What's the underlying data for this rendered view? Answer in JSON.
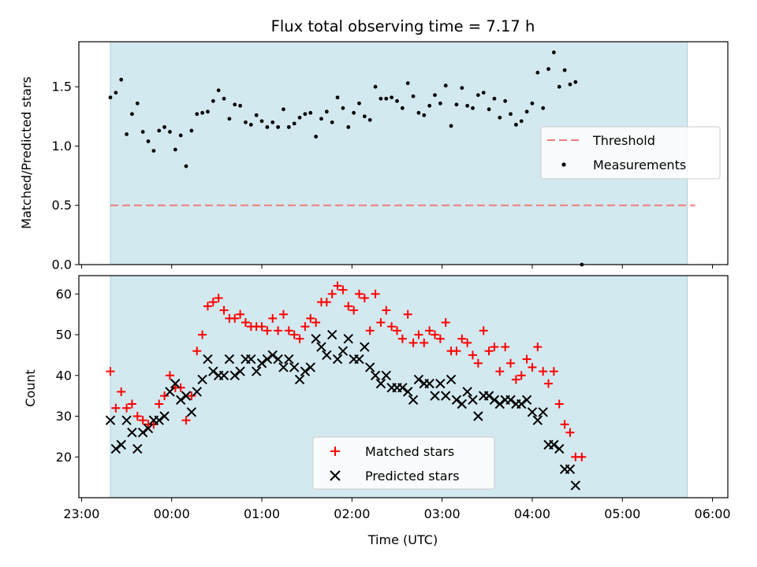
{
  "chart_data": [
    {
      "type": "scatter",
      "title": "Flux total observing time = 7.17 h",
      "xlabel": "",
      "ylabel": "Matched/Predicted stars",
      "x_unit": "hours since 00:00 UTC",
      "xlim": [
        -1.03,
        6.17
      ],
      "ylim": [
        0.0,
        1.88
      ],
      "yticks": [
        0.0,
        0.5,
        1.0,
        1.5
      ],
      "xticks": [
        "23:00",
        "00:00",
        "01:00",
        "02:00",
        "03:00",
        "04:00",
        "05:00",
        "06:00"
      ],
      "observing_window": [
        -0.68,
        5.72
      ],
      "observing_window_color": "#d3e9f0",
      "threshold": 0.5,
      "threshold_color": "#f07b7b",
      "legend": {
        "placement": "right",
        "threshold_label": "Threshold",
        "measurements_label": "Measurements"
      },
      "series": [
        {
          "name": "Measurements",
          "color": "#000000",
          "points": [
            [
              -0.68,
              1.41
            ],
            [
              -0.62,
              1.45
            ],
            [
              -0.56,
              1.56
            ],
            [
              -0.5,
              1.1
            ],
            [
              -0.44,
              1.27
            ],
            [
              -0.38,
              1.36
            ],
            [
              -0.32,
              1.12
            ],
            [
              -0.26,
              1.04
            ],
            [
              -0.2,
              0.96
            ],
            [
              -0.14,
              1.13
            ],
            [
              -0.08,
              1.16
            ],
            [
              -0.02,
              1.12
            ],
            [
              0.04,
              0.97
            ],
            [
              0.1,
              1.09
            ],
            [
              0.16,
              0.83
            ],
            [
              0.22,
              1.13
            ],
            [
              0.28,
              1.27
            ],
            [
              0.34,
              1.28
            ],
            [
              0.4,
              1.29
            ],
            [
              0.46,
              1.38
            ],
            [
              0.52,
              1.47
            ],
            [
              0.58,
              1.4
            ],
            [
              0.64,
              1.23
            ],
            [
              0.7,
              1.35
            ],
            [
              0.76,
              1.34
            ],
            [
              0.82,
              1.2
            ],
            [
              0.88,
              1.18
            ],
            [
              0.94,
              1.26
            ],
            [
              1.0,
              1.21
            ],
            [
              1.06,
              1.16
            ],
            [
              1.12,
              1.2
            ],
            [
              1.18,
              1.16
            ],
            [
              1.24,
              1.31
            ],
            [
              1.3,
              1.16
            ],
            [
              1.36,
              1.19
            ],
            [
              1.42,
              1.24
            ],
            [
              1.48,
              1.27
            ],
            [
              1.54,
              1.28
            ],
            [
              1.6,
              1.08
            ],
            [
              1.66,
              1.23
            ],
            [
              1.72,
              1.29
            ],
            [
              1.78,
              1.2
            ],
            [
              1.84,
              1.41
            ],
            [
              1.9,
              1.32
            ],
            [
              1.96,
              1.16
            ],
            [
              2.02,
              1.28
            ],
            [
              2.08,
              1.36
            ],
            [
              2.14,
              1.25
            ],
            [
              2.2,
              1.22
            ],
            [
              2.26,
              1.5
            ],
            [
              2.32,
              1.4
            ],
            [
              2.38,
              1.4
            ],
            [
              2.44,
              1.41
            ],
            [
              2.5,
              1.38
            ],
            [
              2.56,
              1.32
            ],
            [
              2.62,
              1.53
            ],
            [
              2.68,
              1.42
            ],
            [
              2.74,
              1.28
            ],
            [
              2.8,
              1.26
            ],
            [
              2.86,
              1.34
            ],
            [
              2.92,
              1.43
            ],
            [
              2.98,
              1.36
            ],
            [
              3.04,
              1.51
            ],
            [
              3.1,
              1.17
            ],
            [
              3.16,
              1.35
            ],
            [
              3.22,
              1.49
            ],
            [
              3.28,
              1.34
            ],
            [
              3.34,
              1.32
            ],
            [
              3.4,
              1.43
            ],
            [
              3.46,
              1.45
            ],
            [
              3.52,
              1.31
            ],
            [
              3.58,
              1.4
            ],
            [
              3.64,
              1.24
            ],
            [
              3.7,
              1.38
            ],
            [
              3.76,
              1.27
            ],
            [
              3.82,
              1.18
            ],
            [
              3.88,
              1.21
            ],
            [
              3.94,
              1.29
            ],
            [
              4.0,
              1.36
            ],
            [
              4.06,
              1.62
            ],
            [
              4.12,
              1.32
            ],
            [
              4.18,
              1.65
            ],
            [
              4.24,
              1.79
            ],
            [
              4.3,
              1.5
            ],
            [
              4.36,
              1.64
            ],
            [
              4.42,
              1.52
            ],
            [
              4.48,
              1.54
            ],
            [
              4.55,
              0.0
            ]
          ]
        }
      ]
    },
    {
      "type": "scatter",
      "title": "",
      "xlabel": "Time (UTC)",
      "ylabel": "Count",
      "x_unit": "hours since 00:00 UTC",
      "xlim": [
        -1.03,
        6.17
      ],
      "ylim": [
        10.0,
        64.5
      ],
      "yticks": [
        20,
        30,
        40,
        50,
        60
      ],
      "xticks": [
        "23:00",
        "00:00",
        "01:00",
        "02:00",
        "03:00",
        "04:00",
        "05:00",
        "06:00"
      ],
      "observing_window": [
        -0.68,
        5.72
      ],
      "observing_window_color": "#d3e9f0",
      "legend": {
        "placement": "bottom-center"
      },
      "series": [
        {
          "name": "Matched stars",
          "marker": "plus",
          "color": "#ff0000",
          "points": [
            [
              -0.68,
              41
            ],
            [
              -0.62,
              32
            ],
            [
              -0.56,
              36
            ],
            [
              -0.5,
              32
            ],
            [
              -0.44,
              33
            ],
            [
              -0.38,
              30
            ],
            [
              -0.32,
              29
            ],
            [
              -0.26,
              28
            ],
            [
              -0.2,
              28
            ],
            [
              -0.14,
              33
            ],
            [
              -0.08,
              35
            ],
            [
              -0.02,
              40
            ],
            [
              0.04,
              37
            ],
            [
              0.1,
              37
            ],
            [
              0.16,
              29
            ],
            [
              0.22,
              35
            ],
            [
              0.28,
              46
            ],
            [
              0.34,
              50
            ],
            [
              0.4,
              57
            ],
            [
              0.46,
              58
            ],
            [
              0.52,
              59
            ],
            [
              0.58,
              56
            ],
            [
              0.64,
              54
            ],
            [
              0.7,
              54
            ],
            [
              0.76,
              55
            ],
            [
              0.82,
              53
            ],
            [
              0.88,
              52
            ],
            [
              0.94,
              52
            ],
            [
              1.0,
              52
            ],
            [
              1.06,
              51
            ],
            [
              1.12,
              54
            ],
            [
              1.18,
              51
            ],
            [
              1.24,
              55
            ],
            [
              1.3,
              51
            ],
            [
              1.36,
              50
            ],
            [
              1.42,
              49
            ],
            [
              1.48,
              52
            ],
            [
              1.54,
              54
            ],
            [
              1.6,
              53
            ],
            [
              1.66,
              58
            ],
            [
              1.72,
              58
            ],
            [
              1.78,
              60
            ],
            [
              1.84,
              62
            ],
            [
              1.9,
              61
            ],
            [
              1.96,
              57
            ],
            [
              2.02,
              56
            ],
            [
              2.08,
              60
            ],
            [
              2.14,
              59
            ],
            [
              2.2,
              51
            ],
            [
              2.26,
              60
            ],
            [
              2.32,
              53
            ],
            [
              2.38,
              56
            ],
            [
              2.44,
              52
            ],
            [
              2.5,
              51
            ],
            [
              2.56,
              49
            ],
            [
              2.62,
              55
            ],
            [
              2.68,
              48
            ],
            [
              2.74,
              50
            ],
            [
              2.8,
              48
            ],
            [
              2.86,
              51
            ],
            [
              2.92,
              50
            ],
            [
              2.98,
              49
            ],
            [
              3.04,
              53
            ],
            [
              3.1,
              46
            ],
            [
              3.16,
              46
            ],
            [
              3.22,
              49
            ],
            [
              3.28,
              48
            ],
            [
              3.34,
              45
            ],
            [
              3.4,
              43
            ],
            [
              3.46,
              51
            ],
            [
              3.52,
              46
            ],
            [
              3.58,
              47
            ],
            [
              3.64,
              41
            ],
            [
              3.7,
              47
            ],
            [
              3.76,
              43
            ],
            [
              3.82,
              39
            ],
            [
              3.88,
              40
            ],
            [
              3.94,
              44
            ],
            [
              4.0,
              42
            ],
            [
              4.06,
              47
            ],
            [
              4.12,
              41
            ],
            [
              4.18,
              38
            ],
            [
              4.24,
              41
            ],
            [
              4.3,
              33
            ],
            [
              4.36,
              28
            ],
            [
              4.42,
              26
            ],
            [
              4.48,
              20
            ],
            [
              4.55,
              20
            ]
          ]
        },
        {
          "name": "Predicted stars",
          "marker": "x",
          "color": "#000000",
          "points": [
            [
              -0.68,
              29
            ],
            [
              -0.62,
              22
            ],
            [
              -0.56,
              23
            ],
            [
              -0.5,
              29
            ],
            [
              -0.44,
              26
            ],
            [
              -0.38,
              22
            ],
            [
              -0.32,
              26
            ],
            [
              -0.26,
              27
            ],
            [
              -0.2,
              29
            ],
            [
              -0.14,
              29
            ],
            [
              -0.08,
              30
            ],
            [
              -0.02,
              36
            ],
            [
              0.04,
              38
            ],
            [
              0.1,
              34
            ],
            [
              0.16,
              35
            ],
            [
              0.22,
              31
            ],
            [
              0.28,
              36
            ],
            [
              0.34,
              39
            ],
            [
              0.4,
              44
            ],
            [
              0.46,
              41
            ],
            [
              0.52,
              40
            ],
            [
              0.58,
              40
            ],
            [
              0.64,
              44
            ],
            [
              0.7,
              40
            ],
            [
              0.76,
              41
            ],
            [
              0.82,
              44
            ],
            [
              0.88,
              44
            ],
            [
              0.94,
              41
            ],
            [
              1.0,
              43
            ],
            [
              1.06,
              44
            ],
            [
              1.12,
              45
            ],
            [
              1.18,
              44
            ],
            [
              1.24,
              42
            ],
            [
              1.3,
              44
            ],
            [
              1.36,
              42
            ],
            [
              1.42,
              39
            ],
            [
              1.48,
              41
            ],
            [
              1.54,
              42
            ],
            [
              1.6,
              49
            ],
            [
              1.66,
              47
            ],
            [
              1.72,
              45
            ],
            [
              1.78,
              50
            ],
            [
              1.84,
              44
            ],
            [
              1.9,
              46
            ],
            [
              1.96,
              49
            ],
            [
              2.02,
              44
            ],
            [
              2.08,
              44
            ],
            [
              2.14,
              47
            ],
            [
              2.2,
              42
            ],
            [
              2.26,
              40
            ],
            [
              2.32,
              38
            ],
            [
              2.38,
              40
            ],
            [
              2.44,
              37
            ],
            [
              2.5,
              37
            ],
            [
              2.56,
              37
            ],
            [
              2.62,
              36
            ],
            [
              2.68,
              34
            ],
            [
              2.74,
              39
            ],
            [
              2.8,
              38
            ],
            [
              2.86,
              38
            ],
            [
              2.92,
              35
            ],
            [
              2.98,
              38
            ],
            [
              3.04,
              35
            ],
            [
              3.1,
              39
            ],
            [
              3.16,
              34
            ],
            [
              3.22,
              33
            ],
            [
              3.28,
              36
            ],
            [
              3.34,
              34
            ],
            [
              3.4,
              30
            ],
            [
              3.46,
              35
            ],
            [
              3.52,
              35
            ],
            [
              3.58,
              34
            ],
            [
              3.64,
              33
            ],
            [
              3.7,
              34
            ],
            [
              3.76,
              34
            ],
            [
              3.82,
              33
            ],
            [
              3.88,
              33
            ],
            [
              3.94,
              34
            ],
            [
              4.0,
              31
            ],
            [
              4.06,
              29
            ],
            [
              4.12,
              31
            ],
            [
              4.18,
              23
            ],
            [
              4.24,
              23
            ],
            [
              4.3,
              22
            ],
            [
              4.36,
              17
            ],
            [
              4.42,
              17
            ],
            [
              4.48,
              13
            ]
          ]
        }
      ]
    }
  ]
}
